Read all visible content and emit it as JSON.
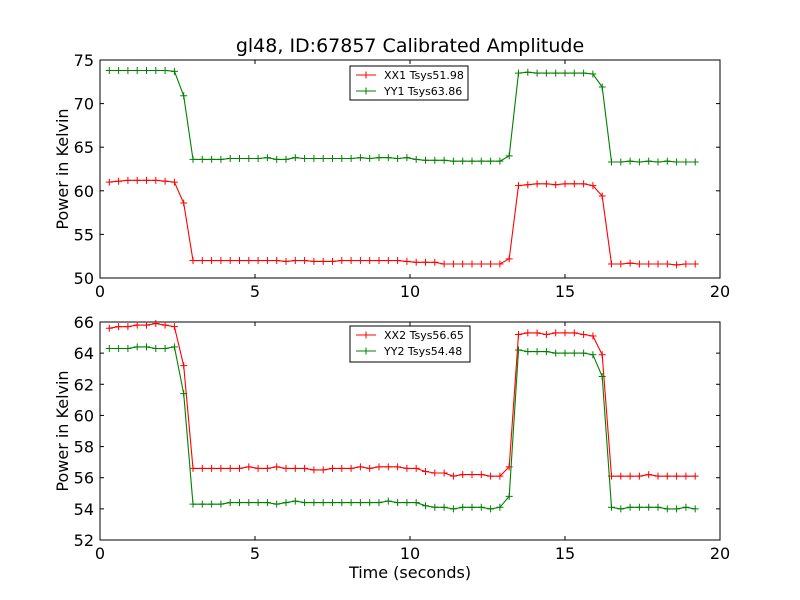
{
  "chart_data": [
    {
      "type": "line",
      "title": "gl48, ID:67857 Calibrated Amplitude",
      "xlabel": "",
      "ylabel": "Power in Kelvin",
      "xlim": [
        0,
        20
      ],
      "ylim": [
        50,
        75
      ],
      "xticks": [
        "0",
        "5",
        "10",
        "15",
        "20"
      ],
      "yticks": [
        "50",
        "55",
        "60",
        "65",
        "70",
        "75"
      ],
      "legend_position": "top-center",
      "grid": false,
      "series": [
        {
          "name": "XX1 Tsys51.98",
          "color": "#ff0000",
          "marker": "+",
          "points": [
            [
              0.3,
              61.0
            ],
            [
              0.6,
              61.1
            ],
            [
              0.9,
              61.2
            ],
            [
              1.2,
              61.2
            ],
            [
              1.5,
              61.2
            ],
            [
              1.8,
              61.2
            ],
            [
              2.1,
              61.1
            ],
            [
              2.4,
              61.0
            ],
            [
              2.7,
              58.6
            ],
            [
              3.0,
              52.0
            ],
            [
              3.3,
              52.0
            ],
            [
              3.6,
              52.0
            ],
            [
              3.9,
              52.0
            ],
            [
              4.2,
              52.0
            ],
            [
              4.5,
              52.0
            ],
            [
              4.8,
              52.0
            ],
            [
              5.1,
              52.0
            ],
            [
              5.4,
              52.0
            ],
            [
              5.7,
              52.0
            ],
            [
              6.0,
              51.9
            ],
            [
              6.3,
              52.0
            ],
            [
              6.6,
              52.0
            ],
            [
              6.9,
              51.9
            ],
            [
              7.2,
              51.9
            ],
            [
              7.5,
              51.9
            ],
            [
              7.8,
              52.0
            ],
            [
              8.1,
              52.0
            ],
            [
              8.4,
              52.0
            ],
            [
              8.7,
              52.0
            ],
            [
              9.0,
              52.0
            ],
            [
              9.3,
              52.0
            ],
            [
              9.6,
              52.0
            ],
            [
              9.9,
              51.9
            ],
            [
              10.2,
              51.8
            ],
            [
              10.5,
              51.8
            ],
            [
              10.8,
              51.8
            ],
            [
              11.1,
              51.6
            ],
            [
              11.4,
              51.6
            ],
            [
              11.7,
              51.6
            ],
            [
              12.0,
              51.6
            ],
            [
              12.3,
              51.6
            ],
            [
              12.6,
              51.6
            ],
            [
              12.9,
              51.6
            ],
            [
              13.2,
              52.2
            ],
            [
              13.5,
              60.6
            ],
            [
              13.8,
              60.7
            ],
            [
              14.1,
              60.8
            ],
            [
              14.4,
              60.8
            ],
            [
              14.7,
              60.7
            ],
            [
              15.0,
              60.8
            ],
            [
              15.3,
              60.8
            ],
            [
              15.6,
              60.8
            ],
            [
              15.9,
              60.6
            ],
            [
              16.2,
              59.4
            ],
            [
              16.5,
              51.6
            ],
            [
              16.8,
              51.6
            ],
            [
              17.1,
              51.7
            ],
            [
              17.4,
              51.6
            ],
            [
              17.7,
              51.6
            ],
            [
              18.0,
              51.6
            ],
            [
              18.3,
              51.6
            ],
            [
              18.6,
              51.5
            ],
            [
              18.9,
              51.6
            ],
            [
              19.2,
              51.6
            ]
          ]
        },
        {
          "name": "YY1 Tsys63.86",
          "color": "#008000",
          "marker": "+",
          "points": [
            [
              0.3,
              73.8
            ],
            [
              0.6,
              73.8
            ],
            [
              0.9,
              73.8
            ],
            [
              1.2,
              73.8
            ],
            [
              1.5,
              73.8
            ],
            [
              1.8,
              73.8
            ],
            [
              2.1,
              73.8
            ],
            [
              2.4,
              73.7
            ],
            [
              2.7,
              70.9
            ],
            [
              3.0,
              63.6
            ],
            [
              3.3,
              63.6
            ],
            [
              3.6,
              63.6
            ],
            [
              3.9,
              63.6
            ],
            [
              4.2,
              63.7
            ],
            [
              4.5,
              63.7
            ],
            [
              4.8,
              63.7
            ],
            [
              5.1,
              63.7
            ],
            [
              5.4,
              63.8
            ],
            [
              5.7,
              63.6
            ],
            [
              6.0,
              63.6
            ],
            [
              6.3,
              63.8
            ],
            [
              6.6,
              63.7
            ],
            [
              6.9,
              63.7
            ],
            [
              7.2,
              63.7
            ],
            [
              7.5,
              63.7
            ],
            [
              7.8,
              63.7
            ],
            [
              8.1,
              63.7
            ],
            [
              8.4,
              63.8
            ],
            [
              8.7,
              63.7
            ],
            [
              9.0,
              63.8
            ],
            [
              9.3,
              63.8
            ],
            [
              9.6,
              63.7
            ],
            [
              9.9,
              63.8
            ],
            [
              10.2,
              63.6
            ],
            [
              10.5,
              63.5
            ],
            [
              10.8,
              63.5
            ],
            [
              11.1,
              63.5
            ],
            [
              11.4,
              63.4
            ],
            [
              11.7,
              63.4
            ],
            [
              12.0,
              63.4
            ],
            [
              12.3,
              63.4
            ],
            [
              12.6,
              63.4
            ],
            [
              12.9,
              63.4
            ],
            [
              13.2,
              64.0
            ],
            [
              13.5,
              73.5
            ],
            [
              13.8,
              73.6
            ],
            [
              14.1,
              73.5
            ],
            [
              14.4,
              73.5
            ],
            [
              14.7,
              73.5
            ],
            [
              15.0,
              73.5
            ],
            [
              15.3,
              73.5
            ],
            [
              15.6,
              73.5
            ],
            [
              15.9,
              73.4
            ],
            [
              16.2,
              71.9
            ],
            [
              16.5,
              63.3
            ],
            [
              16.8,
              63.3
            ],
            [
              17.1,
              63.4
            ],
            [
              17.4,
              63.3
            ],
            [
              17.7,
              63.4
            ],
            [
              18.0,
              63.3
            ],
            [
              18.3,
              63.4
            ],
            [
              18.6,
              63.3
            ],
            [
              18.9,
              63.3
            ],
            [
              19.2,
              63.3
            ]
          ]
        }
      ]
    },
    {
      "type": "line",
      "title": "",
      "xlabel": "Time (seconds)",
      "ylabel": "Power in Kelvin",
      "xlim": [
        0,
        20
      ],
      "ylim": [
        52,
        66
      ],
      "xticks": [
        "0",
        "5",
        "10",
        "15",
        "20"
      ],
      "yticks": [
        "52",
        "54",
        "56",
        "58",
        "60",
        "62",
        "64",
        "66"
      ],
      "legend_position": "top-center",
      "grid": false,
      "series": [
        {
          "name": "XX2 Tsys56.65",
          "color": "#ff0000",
          "marker": "+",
          "points": [
            [
              0.3,
              65.6
            ],
            [
              0.6,
              65.7
            ],
            [
              0.9,
              65.7
            ],
            [
              1.2,
              65.8
            ],
            [
              1.5,
              65.8
            ],
            [
              1.8,
              65.9
            ],
            [
              2.1,
              65.8
            ],
            [
              2.4,
              65.7
            ],
            [
              2.7,
              63.2
            ],
            [
              3.0,
              56.6
            ],
            [
              3.3,
              56.6
            ],
            [
              3.6,
              56.6
            ],
            [
              3.9,
              56.6
            ],
            [
              4.2,
              56.6
            ],
            [
              4.5,
              56.6
            ],
            [
              4.8,
              56.7
            ],
            [
              5.1,
              56.6
            ],
            [
              5.4,
              56.6
            ],
            [
              5.7,
              56.7
            ],
            [
              6.0,
              56.6
            ],
            [
              6.3,
              56.6
            ],
            [
              6.6,
              56.6
            ],
            [
              6.9,
              56.5
            ],
            [
              7.2,
              56.5
            ],
            [
              7.5,
              56.6
            ],
            [
              7.8,
              56.6
            ],
            [
              8.1,
              56.6
            ],
            [
              8.4,
              56.7
            ],
            [
              8.7,
              56.6
            ],
            [
              9.0,
              56.7
            ],
            [
              9.3,
              56.7
            ],
            [
              9.6,
              56.7
            ],
            [
              9.9,
              56.6
            ],
            [
              10.2,
              56.6
            ],
            [
              10.5,
              56.4
            ],
            [
              10.8,
              56.3
            ],
            [
              11.1,
              56.3
            ],
            [
              11.4,
              56.1
            ],
            [
              11.7,
              56.2
            ],
            [
              12.0,
              56.2
            ],
            [
              12.3,
              56.2
            ],
            [
              12.6,
              56.1
            ],
            [
              12.9,
              56.1
            ],
            [
              13.2,
              56.7
            ],
            [
              13.5,
              65.2
            ],
            [
              13.8,
              65.3
            ],
            [
              14.1,
              65.3
            ],
            [
              14.4,
              65.2
            ],
            [
              14.7,
              65.3
            ],
            [
              15.0,
              65.3
            ],
            [
              15.3,
              65.3
            ],
            [
              15.6,
              65.2
            ],
            [
              15.9,
              65.1
            ],
            [
              16.2,
              63.9
            ],
            [
              16.5,
              56.1
            ],
            [
              16.8,
              56.1
            ],
            [
              17.1,
              56.1
            ],
            [
              17.4,
              56.1
            ],
            [
              17.7,
              56.2
            ],
            [
              18.0,
              56.1
            ],
            [
              18.3,
              56.1
            ],
            [
              18.6,
              56.1
            ],
            [
              18.9,
              56.1
            ],
            [
              19.2,
              56.1
            ]
          ]
        },
        {
          "name": "YY2 Tsys54.48",
          "color": "#008000",
          "marker": "+",
          "points": [
            [
              0.3,
              64.3
            ],
            [
              0.6,
              64.3
            ],
            [
              0.9,
              64.3
            ],
            [
              1.2,
              64.4
            ],
            [
              1.5,
              64.4
            ],
            [
              1.8,
              64.3
            ],
            [
              2.1,
              64.3
            ],
            [
              2.4,
              64.4
            ],
            [
              2.7,
              61.4
            ],
            [
              3.0,
              54.3
            ],
            [
              3.3,
              54.3
            ],
            [
              3.6,
              54.3
            ],
            [
              3.9,
              54.3
            ],
            [
              4.2,
              54.4
            ],
            [
              4.5,
              54.4
            ],
            [
              4.8,
              54.4
            ],
            [
              5.1,
              54.4
            ],
            [
              5.4,
              54.4
            ],
            [
              5.7,
              54.3
            ],
            [
              6.0,
              54.4
            ],
            [
              6.3,
              54.5
            ],
            [
              6.6,
              54.4
            ],
            [
              6.9,
              54.4
            ],
            [
              7.2,
              54.4
            ],
            [
              7.5,
              54.4
            ],
            [
              7.8,
              54.4
            ],
            [
              8.1,
              54.4
            ],
            [
              8.4,
              54.4
            ],
            [
              8.7,
              54.4
            ],
            [
              9.0,
              54.4
            ],
            [
              9.3,
              54.5
            ],
            [
              9.6,
              54.4
            ],
            [
              9.9,
              54.4
            ],
            [
              10.2,
              54.4
            ],
            [
              10.5,
              54.2
            ],
            [
              10.8,
              54.1
            ],
            [
              11.1,
              54.1
            ],
            [
              11.4,
              54.0
            ],
            [
              11.7,
              54.1
            ],
            [
              12.0,
              54.1
            ],
            [
              12.3,
              54.1
            ],
            [
              12.6,
              54.0
            ],
            [
              12.9,
              54.1
            ],
            [
              13.2,
              54.8
            ],
            [
              13.5,
              64.2
            ],
            [
              13.8,
              64.1
            ],
            [
              14.1,
              64.1
            ],
            [
              14.4,
              64.1
            ],
            [
              14.7,
              64.0
            ],
            [
              15.0,
              64.0
            ],
            [
              15.3,
              64.0
            ],
            [
              15.6,
              64.0
            ],
            [
              15.9,
              63.9
            ],
            [
              16.2,
              62.5
            ],
            [
              16.5,
              54.1
            ],
            [
              16.8,
              54.0
            ],
            [
              17.1,
              54.1
            ],
            [
              17.4,
              54.1
            ],
            [
              17.7,
              54.1
            ],
            [
              18.0,
              54.1
            ],
            [
              18.3,
              54.0
            ],
            [
              18.6,
              54.0
            ],
            [
              18.9,
              54.1
            ],
            [
              19.2,
              54.0
            ]
          ]
        }
      ]
    }
  ]
}
